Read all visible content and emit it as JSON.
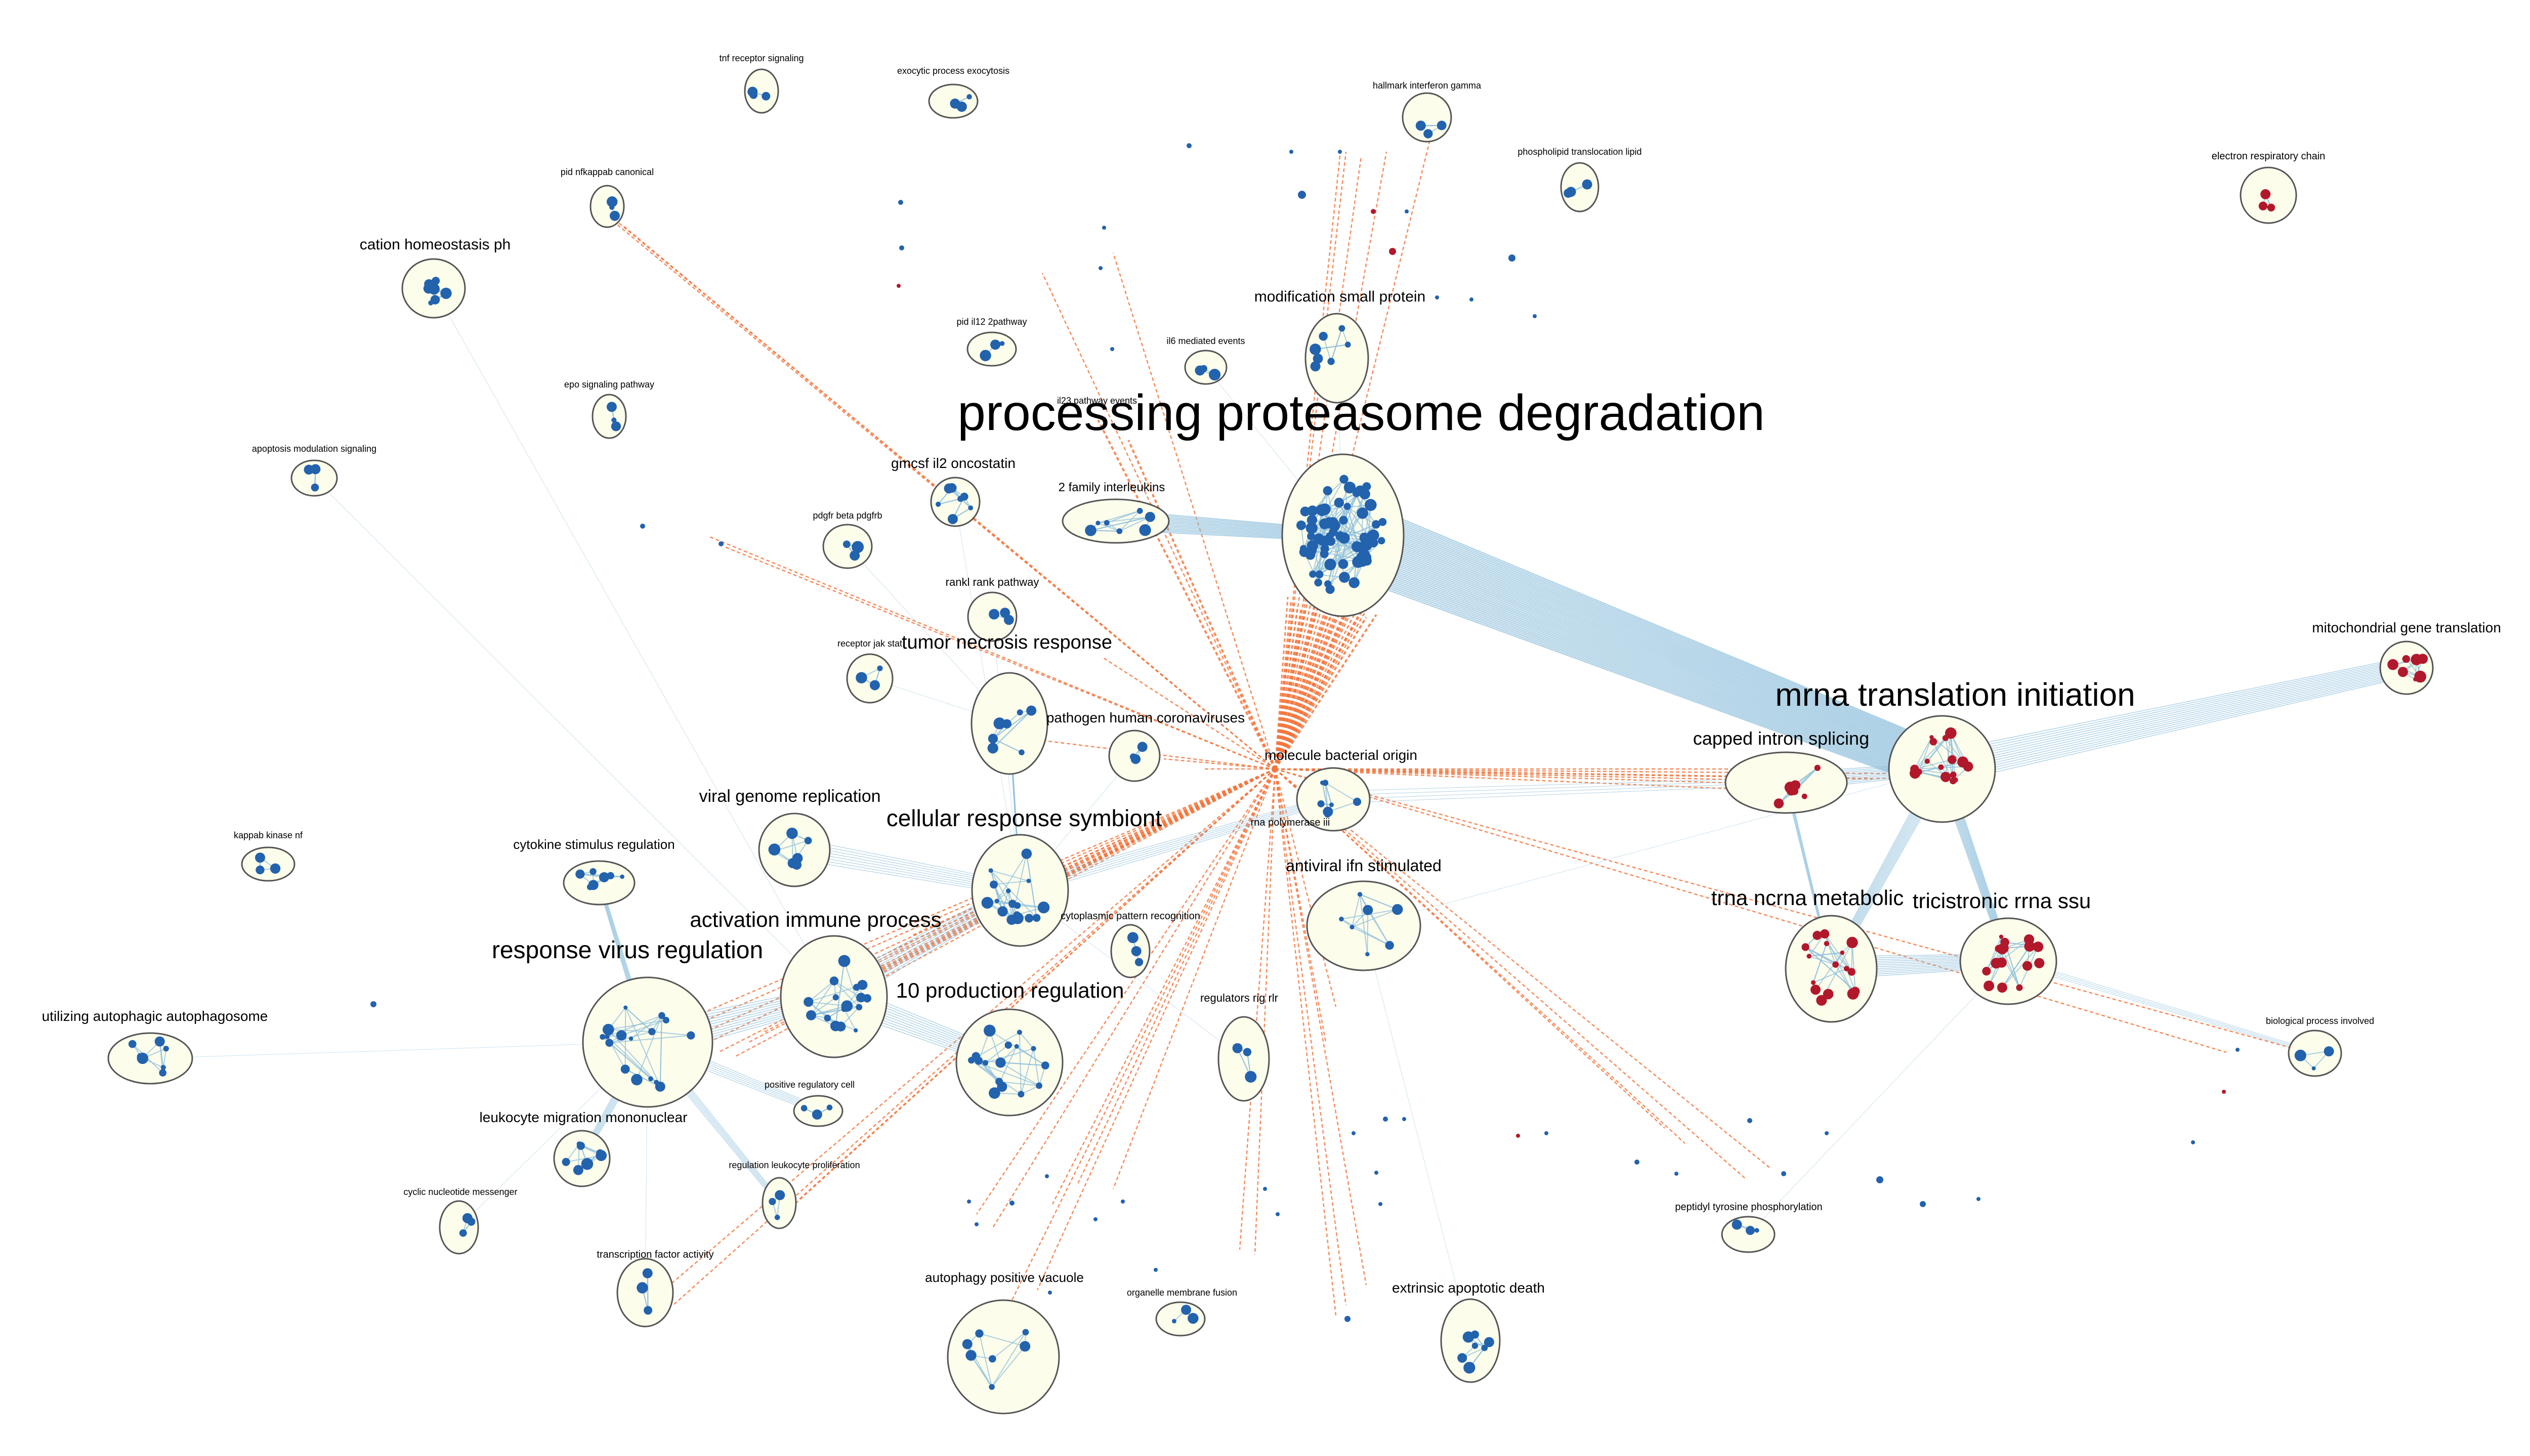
{
  "network": {
    "colors": {
      "background": "#ffffff",
      "cluster_fill": "#fdfdec",
      "cluster_stroke": "#555555",
      "node_blue": "#2362ad",
      "node_red": "#b2182b",
      "edge_blue": "#8fc0dc",
      "edge_orange": "#f4773f"
    },
    "hub_node": {
      "label": "molecule bacterial origin"
    },
    "clusters": [
      {
        "id": "tnf",
        "label": "tnf receptor signaling",
        "size": "small",
        "color": "blue"
      },
      {
        "id": "exocytic",
        "label": "exocytic process exocytosis",
        "size": "small",
        "color": "blue"
      },
      {
        "id": "ifng",
        "label": "hallmark interferon gamma",
        "size": "small",
        "color": "blue"
      },
      {
        "id": "phospho",
        "label": "phospholipid translocation lipid",
        "size": "small",
        "color": "blue"
      },
      {
        "id": "electron",
        "label": "electron respiratory chain",
        "size": "small",
        "color": "red"
      },
      {
        "id": "nfkb",
        "label": "pid nfkappab canonical",
        "size": "small",
        "color": "blue"
      },
      {
        "id": "cation",
        "label": "cation homeostasis ph",
        "size": "medium",
        "color": "blue"
      },
      {
        "id": "modif",
        "label": "modification small protein",
        "size": "medium",
        "color": "blue"
      },
      {
        "id": "il12",
        "label": "pid il12 2pathway",
        "size": "small",
        "color": "blue"
      },
      {
        "id": "il6",
        "label": "il6 mediated events",
        "size": "small",
        "color": "blue"
      },
      {
        "id": "epo",
        "label": "epo signaling pathway",
        "size": "small",
        "color": "blue"
      },
      {
        "id": "il23",
        "label": "il23 pathway events",
        "size": "small",
        "color": "blue"
      },
      {
        "id": "proteasome",
        "label": "processing proteasome degradation",
        "size": "xlarge",
        "color": "blue"
      },
      {
        "id": "apoptmod",
        "label": "apoptosis modulation signaling",
        "size": "small",
        "color": "blue"
      },
      {
        "id": "gmcsf",
        "label": "gmcsf il2 oncostatin",
        "size": "medium",
        "color": "blue"
      },
      {
        "id": "fam2",
        "label": "2 family interleukins",
        "size": "medium",
        "color": "blue"
      },
      {
        "id": "pdgfr",
        "label": "pdgfr beta pdgfrb",
        "size": "small",
        "color": "blue"
      },
      {
        "id": "rankl",
        "label": "rankl rank pathway",
        "size": "small",
        "color": "blue"
      },
      {
        "id": "mito",
        "label": "mitochondrial gene translation",
        "size": "medium",
        "color": "red"
      },
      {
        "id": "jak",
        "label": "receptor jak stat",
        "size": "small",
        "color": "blue"
      },
      {
        "id": "tnfresp",
        "label": "tumor necrosis response",
        "size": "medium",
        "color": "blue"
      },
      {
        "id": "mrna",
        "label": "mrna translation initiation",
        "size": "large",
        "color": "red"
      },
      {
        "id": "corona",
        "label": "pathogen human coronaviruses",
        "size": "small",
        "color": "blue"
      },
      {
        "id": "capped",
        "label": "capped intron splicing",
        "size": "medium",
        "color": "red"
      },
      {
        "id": "molecule",
        "label": "molecule bacterial origin",
        "size": "medium",
        "color": "blue"
      },
      {
        "id": "viralgen",
        "label": "viral genome replication",
        "size": "medium",
        "color": "blue"
      },
      {
        "id": "kappab",
        "label": "kappab kinase nf",
        "size": "small",
        "color": "blue"
      },
      {
        "id": "symbiont",
        "label": "cellular response symbiont",
        "size": "large",
        "color": "blue"
      },
      {
        "id": "rnapol",
        "label": "rna polymerase iii",
        "size": "small",
        "color": "blue"
      },
      {
        "id": "cytokine",
        "label": "cytokine stimulus regulation",
        "size": "medium",
        "color": "blue"
      },
      {
        "id": "antiviral",
        "label": "antiviral ifn stimulated",
        "size": "medium",
        "color": "blue"
      },
      {
        "id": "trna",
        "label": "trna ncrna metabolic",
        "size": "large",
        "color": "red"
      },
      {
        "id": "tricistronic",
        "label": "tricistronic rrna ssu",
        "size": "large",
        "color": "red"
      },
      {
        "id": "activation",
        "label": "activation immune process",
        "size": "large",
        "color": "blue"
      },
      {
        "id": "cytopattern",
        "label": "cytoplasmic pattern recognition",
        "size": "small",
        "color": "blue"
      },
      {
        "id": "virusreg",
        "label": "response virus regulation",
        "size": "large",
        "color": "blue"
      },
      {
        "id": "autophago",
        "label": "utilizing autophagic autophagosome",
        "size": "medium",
        "color": "blue"
      },
      {
        "id": "il10",
        "label": "10 production regulation",
        "size": "large",
        "color": "blue"
      },
      {
        "id": "rigrlr",
        "label": "regulators rig rlr",
        "size": "small",
        "color": "blue"
      },
      {
        "id": "bioproc",
        "label": "biological process involved",
        "size": "small",
        "color": "blue"
      },
      {
        "id": "poscell",
        "label": "positive regulatory cell",
        "size": "small",
        "color": "blue"
      },
      {
        "id": "leukomig",
        "label": "leukocyte migration mononuclear",
        "size": "medium",
        "color": "blue"
      },
      {
        "id": "leukoprol",
        "label": "regulation leukocyte proliferation",
        "size": "small",
        "color": "blue"
      },
      {
        "id": "cyclic",
        "label": "cyclic nucleotide messenger",
        "size": "small",
        "color": "blue"
      },
      {
        "id": "peptidyl",
        "label": "peptidyl tyrosine phosphorylation",
        "size": "small",
        "color": "blue"
      },
      {
        "id": "tfactor",
        "label": "transcription factor activity",
        "size": "small",
        "color": "blue"
      },
      {
        "id": "autovac",
        "label": "autophagy positive vacuole",
        "size": "medium",
        "color": "blue"
      },
      {
        "id": "organelle",
        "label": "organelle membrane fusion",
        "size": "small",
        "color": "blue"
      },
      {
        "id": "extrinsic",
        "label": "extrinsic apoptotic death",
        "size": "medium",
        "color": "blue"
      }
    ]
  }
}
